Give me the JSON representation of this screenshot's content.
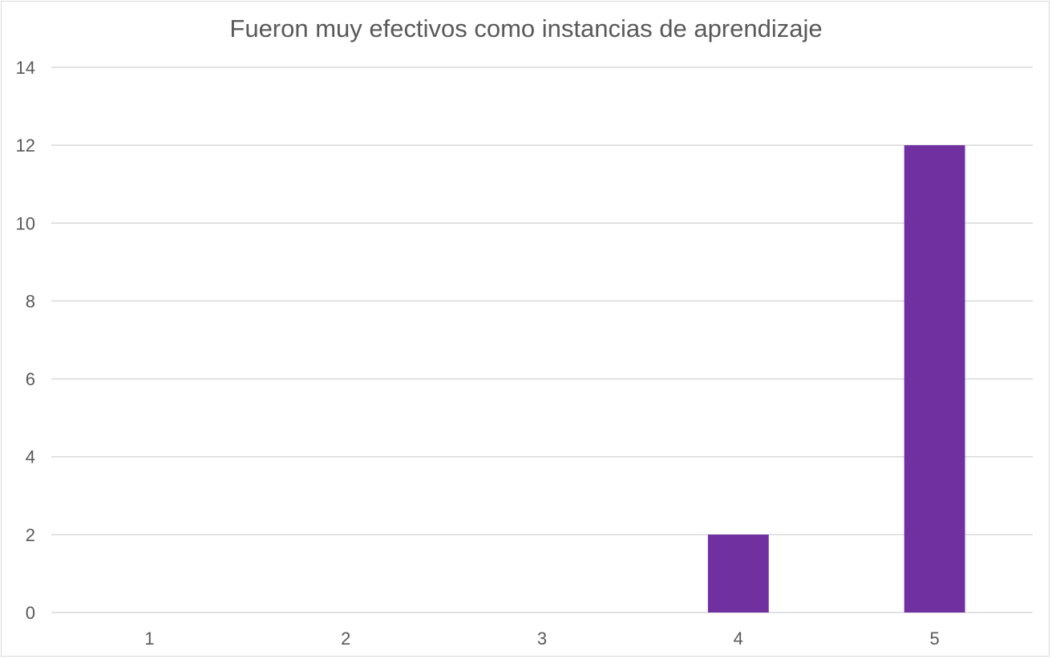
{
  "chart_data": {
    "type": "bar",
    "title": "Fueron muy efectivos como instancias de aprendizaje",
    "categories": [
      "1",
      "2",
      "3",
      "4",
      "5"
    ],
    "values": [
      0,
      0,
      0,
      2,
      12
    ],
    "ylim": [
      0,
      14
    ],
    "yticks": [
      "0",
      "2",
      "4",
      "6",
      "8",
      "10",
      "12",
      "14"
    ],
    "grid": true,
    "legend": "none",
    "bar_color": "#7030a0"
  }
}
